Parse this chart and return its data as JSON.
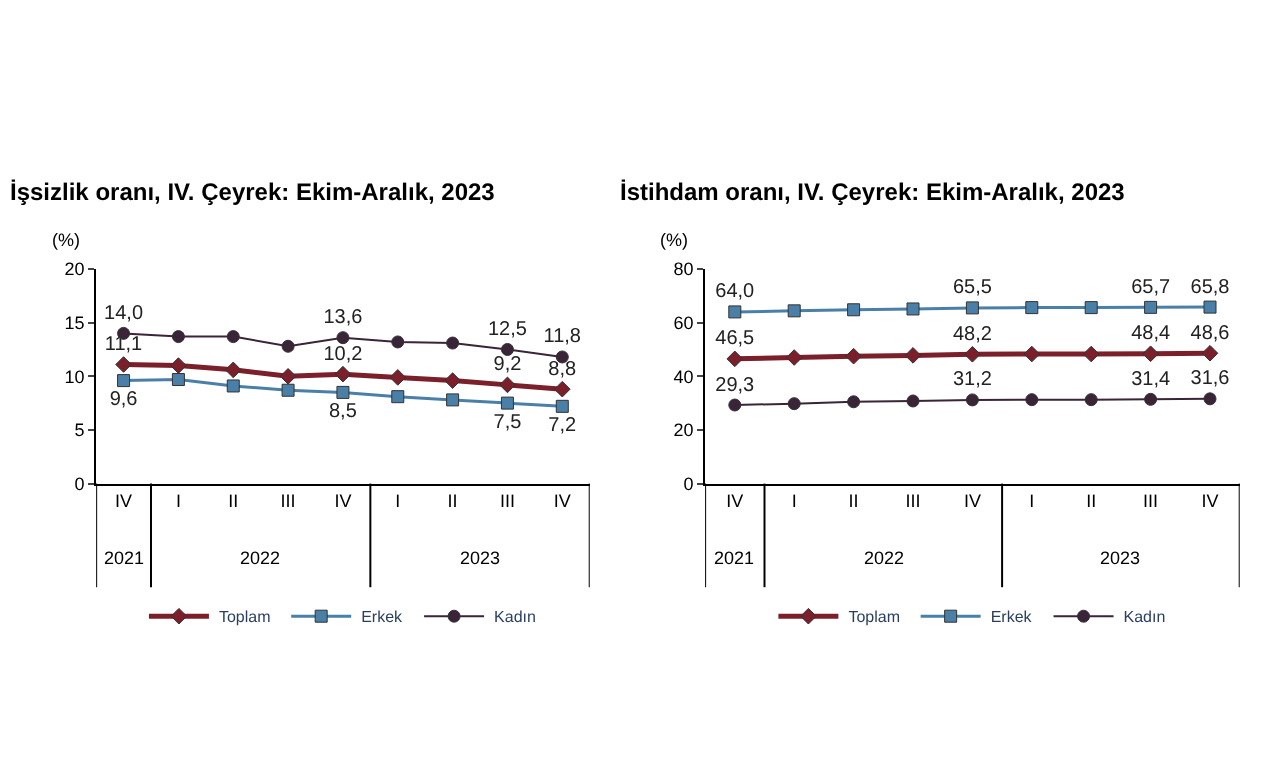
{
  "chart_data": [
    {
      "type": "line",
      "title": "İşsizlik oranı, IV. Çeyrek: Ekim-Aralık, 2023",
      "ylabel": "(%)",
      "categories": [
        "IV",
        "I",
        "II",
        "III",
        "IV",
        "I",
        "II",
        "III",
        "IV"
      ],
      "annotations": [
        "2021",
        "2022",
        "2023"
      ],
      "ylim": [
        0,
        20
      ],
      "yticks": [
        0,
        5,
        10,
        15,
        20
      ],
      "grid": false,
      "legend": "bottom",
      "series": [
        {
          "name": "Toplam",
          "color": "#7b1f2a",
          "marker": "diamond",
          "values": [
            11.1,
            11.0,
            10.6,
            10.0,
            10.2,
            9.9,
            9.6,
            9.2,
            8.8
          ],
          "value_labels": [
            "11,1",
            null,
            null,
            null,
            "10,2",
            null,
            null,
            "9,2",
            "8,8"
          ]
        },
        {
          "name": "Erkek",
          "color": "#4a7fa8",
          "marker": "square",
          "values": [
            9.6,
            9.7,
            9.1,
            8.7,
            8.5,
            8.1,
            7.8,
            7.5,
            7.2
          ],
          "value_labels": [
            "9,6",
            null,
            null,
            null,
            "8,5",
            null,
            null,
            "7,5",
            "7,2"
          ]
        },
        {
          "name": "Kadın",
          "color": "#3a2438",
          "marker": "circle",
          "values": [
            14.0,
            13.7,
            13.7,
            12.8,
            13.6,
            13.2,
            13.1,
            12.5,
            11.8
          ],
          "value_labels": [
            "14,0",
            null,
            null,
            null,
            "13,6",
            null,
            null,
            "12,5",
            "11,8"
          ]
        }
      ]
    },
    {
      "type": "line",
      "title": "İstihdam oranı, IV. Çeyrek: Ekim-Aralık, 2023",
      "ylabel": "(%)",
      "categories": [
        "IV",
        "I",
        "II",
        "III",
        "IV",
        "I",
        "II",
        "III",
        "IV"
      ],
      "annotations": [
        "2021",
        "2022",
        "2023"
      ],
      "ylim": [
        0,
        80
      ],
      "yticks": [
        0,
        20,
        40,
        60,
        80
      ],
      "grid": false,
      "legend": "bottom",
      "series": [
        {
          "name": "Toplam",
          "color": "#7b1f2a",
          "marker": "diamond",
          "values": [
            46.5,
            47.0,
            47.5,
            47.8,
            48.2,
            48.3,
            48.3,
            48.4,
            48.6
          ],
          "value_labels": [
            "46,5",
            null,
            null,
            null,
            "48,2",
            null,
            null,
            "48,4",
            "48,6"
          ]
        },
        {
          "name": "Erkek",
          "color": "#4a7fa8",
          "marker": "square",
          "values": [
            64.0,
            64.4,
            64.8,
            65.1,
            65.5,
            65.6,
            65.6,
            65.7,
            65.8
          ],
          "value_labels": [
            "64,0",
            null,
            null,
            null,
            "65,5",
            null,
            null,
            "65,7",
            "65,8"
          ]
        },
        {
          "name": "Kadın",
          "color": "#3a2438",
          "marker": "circle",
          "values": [
            29.3,
            29.8,
            30.5,
            30.8,
            31.2,
            31.3,
            31.3,
            31.4,
            31.6
          ],
          "value_labels": [
            "29,3",
            null,
            null,
            null,
            "31,2",
            null,
            null,
            "31,4",
            "31,6"
          ]
        }
      ]
    }
  ]
}
